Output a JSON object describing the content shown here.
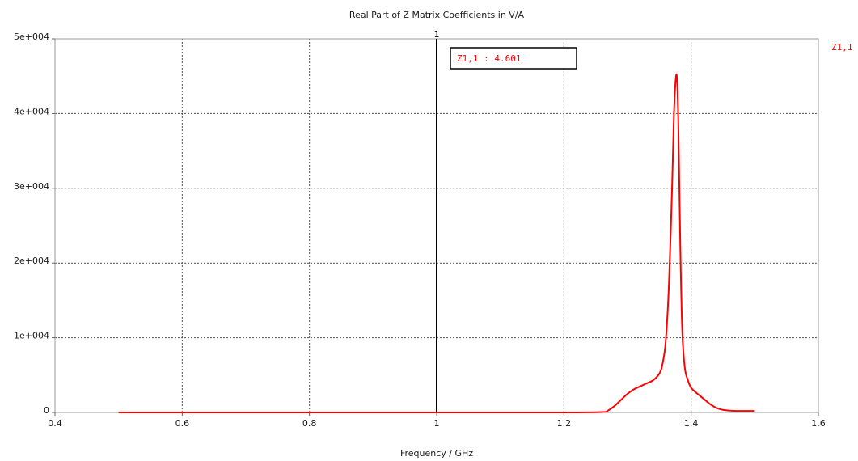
{
  "chart_data": {
    "type": "line",
    "title": "Real Part of Z Matrix Coefficients in V/A",
    "xlabel": "Frequency / GHz",
    "ylabel": "",
    "xlim": [
      0.4,
      1.6
    ],
    "ylim": [
      0,
      50000
    ],
    "x_ticks": [
      0.4,
      0.6,
      0.8,
      1.0,
      1.2,
      1.4,
      1.6
    ],
    "x_tick_labels": [
      "0.4",
      "0.6",
      "0.8",
      "1",
      "1.2",
      "1.4",
      "1.6"
    ],
    "y_ticks": [
      0,
      10000,
      20000,
      30000,
      40000,
      50000
    ],
    "y_tick_labels": [
      "0",
      "1e+004",
      "2e+004",
      "3e+004",
      "4e+004",
      "5e+004"
    ],
    "grid": true,
    "legend_position": "top-right",
    "series": [
      {
        "name": "Z1,1",
        "color": "#ff0000",
        "x": [
          0.5,
          0.6,
          0.8,
          1.0,
          1.2,
          1.26,
          1.27,
          1.28,
          1.29,
          1.3,
          1.31,
          1.32,
          1.33,
          1.34,
          1.35,
          1.355,
          1.36,
          1.365,
          1.37,
          1.373,
          1.376,
          1.378,
          1.38,
          1.383,
          1.386,
          1.39,
          1.395,
          1.4,
          1.41,
          1.42,
          1.43,
          1.44,
          1.45,
          1.46,
          1.47,
          1.48,
          1.49,
          1.5
        ],
        "y": [
          0,
          0,
          0,
          0,
          0,
          50,
          300,
          900,
          1700,
          2500,
          3100,
          3500,
          3900,
          4300,
          5200,
          6500,
          9500,
          17000,
          30000,
          40000,
          44800,
          44300,
          38000,
          22000,
          11000,
          6000,
          4300,
          3300,
          2500,
          1800,
          1100,
          600,
          350,
          250,
          200,
          200,
          200,
          200
        ]
      }
    ],
    "marker": {
      "label": "1",
      "x": 1.0,
      "annotation": "Z1,1 : 4.601"
    }
  }
}
